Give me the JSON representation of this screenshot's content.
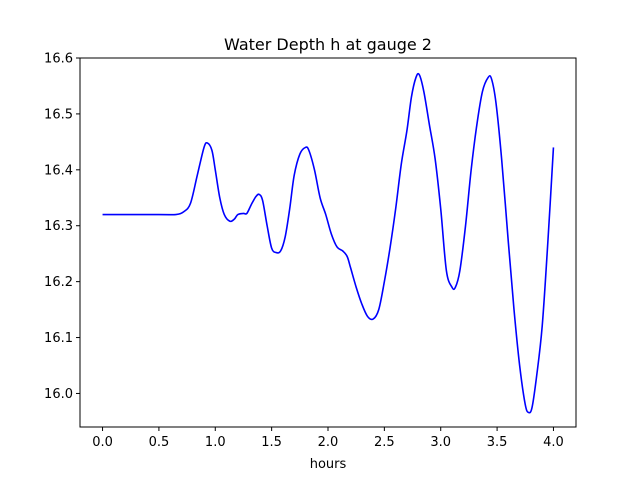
{
  "chart_data": {
    "type": "line",
    "title": "Water Depth h at gauge 2",
    "xlabel": "hours",
    "ylabel": "",
    "xlim": [
      -0.2,
      4.2
    ],
    "ylim": [
      15.94,
      16.6
    ],
    "xticks": [
      0.0,
      0.5,
      1.0,
      1.5,
      2.0,
      2.5,
      3.0,
      3.5,
      4.0
    ],
    "xtick_labels": [
      "0.0",
      "0.5",
      "1.0",
      "1.5",
      "2.0",
      "2.5",
      "3.0",
      "3.5",
      "4.0"
    ],
    "yticks": [
      16.0,
      16.1,
      16.2,
      16.3,
      16.4,
      16.5,
      16.6
    ],
    "ytick_labels": [
      "16.0",
      "16.1",
      "16.2",
      "16.3",
      "16.4",
      "16.5",
      "16.6"
    ],
    "grid": false,
    "series": [
      {
        "color": "#0000ff",
        "points": [
          [
            0.0,
            16.32
          ],
          [
            0.5,
            16.32
          ],
          [
            0.65,
            16.32
          ],
          [
            0.72,
            16.325
          ],
          [
            0.78,
            16.34
          ],
          [
            0.84,
            16.39
          ],
          [
            0.9,
            16.44
          ],
          [
            0.93,
            16.448
          ],
          [
            0.97,
            16.435
          ],
          [
            1.0,
            16.4
          ],
          [
            1.04,
            16.35
          ],
          [
            1.08,
            16.32
          ],
          [
            1.13,
            16.308
          ],
          [
            1.17,
            16.312
          ],
          [
            1.2,
            16.32
          ],
          [
            1.25,
            16.322
          ],
          [
            1.28,
            16.322
          ],
          [
            1.32,
            16.338
          ],
          [
            1.36,
            16.352
          ],
          [
            1.39,
            16.356
          ],
          [
            1.42,
            16.345
          ],
          [
            1.46,
            16.3
          ],
          [
            1.5,
            16.26
          ],
          [
            1.54,
            16.252
          ],
          [
            1.58,
            16.255
          ],
          [
            1.62,
            16.28
          ],
          [
            1.66,
            16.33
          ],
          [
            1.7,
            16.39
          ],
          [
            1.75,
            16.428
          ],
          [
            1.8,
            16.44
          ],
          [
            1.83,
            16.435
          ],
          [
            1.88,
            16.4
          ],
          [
            1.93,
            16.35
          ],
          [
            1.98,
            16.32
          ],
          [
            2.03,
            16.285
          ],
          [
            2.08,
            16.262
          ],
          [
            2.13,
            16.255
          ],
          [
            2.17,
            16.245
          ],
          [
            2.2,
            16.225
          ],
          [
            2.25,
            16.19
          ],
          [
            2.3,
            16.16
          ],
          [
            2.35,
            16.138
          ],
          [
            2.4,
            16.133
          ],
          [
            2.45,
            16.15
          ],
          [
            2.5,
            16.2
          ],
          [
            2.55,
            16.26
          ],
          [
            2.6,
            16.33
          ],
          [
            2.65,
            16.41
          ],
          [
            2.7,
            16.47
          ],
          [
            2.74,
            16.53
          ],
          [
            2.78,
            16.565
          ],
          [
            2.81,
            16.57
          ],
          [
            2.85,
            16.54
          ],
          [
            2.9,
            16.48
          ],
          [
            2.95,
            16.42
          ],
          [
            3.0,
            16.33
          ],
          [
            3.05,
            16.22
          ],
          [
            3.1,
            16.19
          ],
          [
            3.13,
            16.19
          ],
          [
            3.17,
            16.22
          ],
          [
            3.22,
            16.3
          ],
          [
            3.27,
            16.4
          ],
          [
            3.32,
            16.48
          ],
          [
            3.37,
            16.54
          ],
          [
            3.42,
            16.565
          ],
          [
            3.45,
            16.563
          ],
          [
            3.49,
            16.52
          ],
          [
            3.54,
            16.42
          ],
          [
            3.6,
            16.27
          ],
          [
            3.65,
            16.15
          ],
          [
            3.7,
            16.05
          ],
          [
            3.75,
            15.98
          ],
          [
            3.78,
            15.966
          ],
          [
            3.81,
            15.975
          ],
          [
            3.85,
            16.03
          ],
          [
            3.9,
            16.12
          ],
          [
            3.95,
            16.27
          ],
          [
            4.0,
            16.44
          ]
        ]
      }
    ]
  }
}
